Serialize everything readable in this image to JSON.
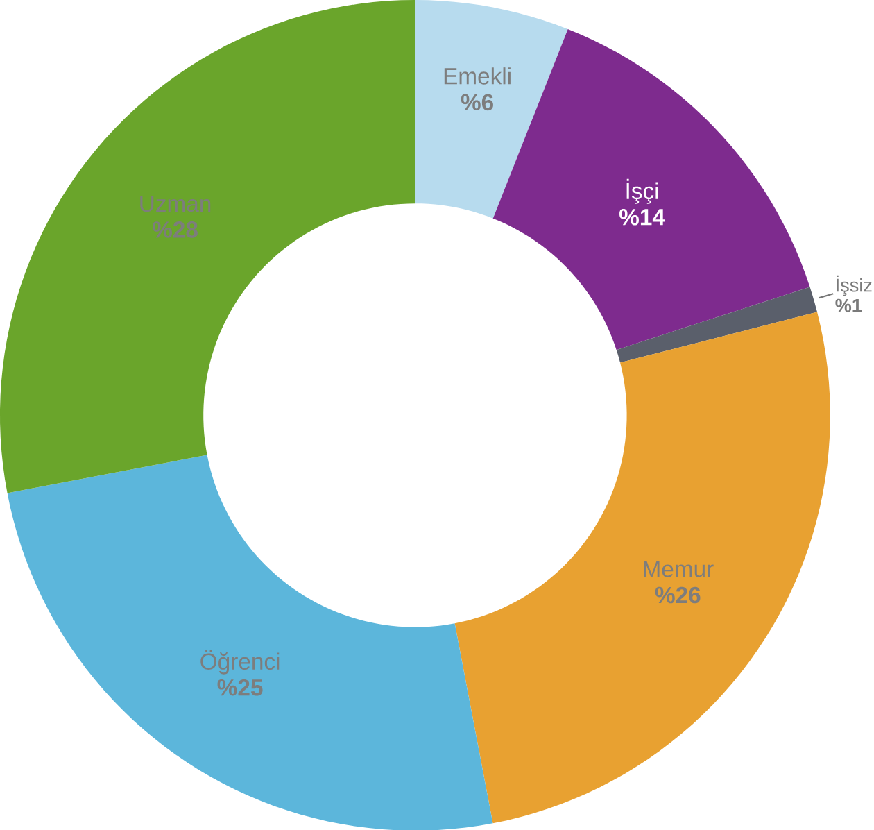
{
  "chart_data": {
    "type": "donut",
    "categories": [
      "Emekli",
      "İşçi",
      "İşsiz",
      "Memur",
      "Öğrenci",
      "Uzman"
    ],
    "values": [
      6,
      14,
      1,
      26,
      25,
      28
    ],
    "colors": [
      "#b7dbee",
      "#7e2b8e",
      "#5a5f6b",
      "#e8a131",
      "#5cb6db",
      "#6aa52b"
    ],
    "value_labels": [
      "%6",
      "%14",
      "%1",
      "%26",
      "%25",
      "%28"
    ]
  }
}
